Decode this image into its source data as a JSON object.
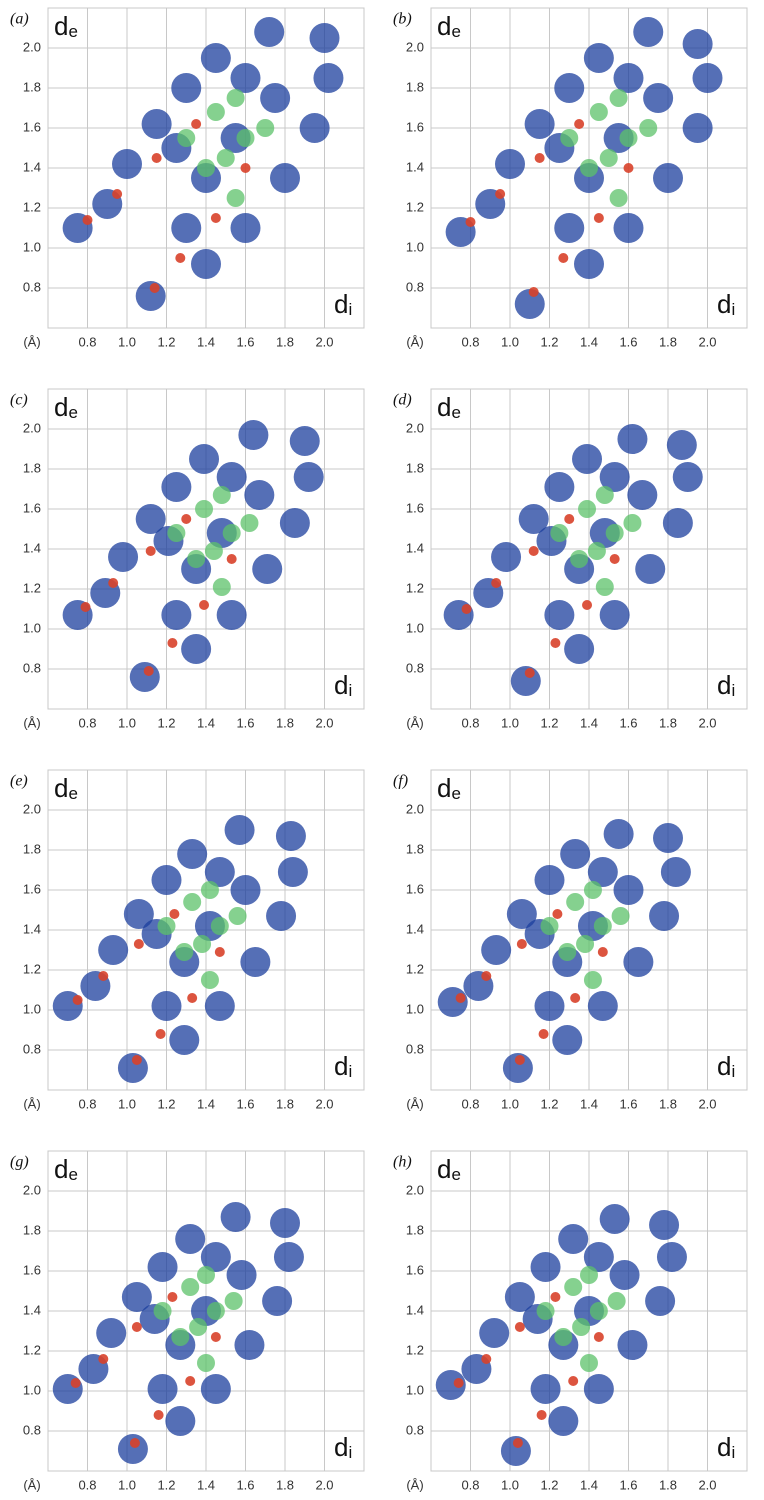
{
  "chart_data": [
    {
      "type": "scatter",
      "label": "(a)",
      "ylabel": {
        "main": "d",
        "sub": "e"
      },
      "xlabel": {
        "main": "d",
        "sub": "i"
      },
      "unit": "(Å)",
      "xlim": [
        0.6,
        2.2
      ],
      "ylim": [
        0.6,
        2.2
      ],
      "grid": true,
      "xticks": [
        0.8,
        {
          "value": 1,
          "label": "1.0"
        },
        1.2,
        1.4,
        1.6,
        1.8,
        {
          "value": 2,
          "label": "2.0"
        }
      ],
      "yticks": [
        0.8,
        {
          "value": 1,
          "label": "1.0"
        },
        1.2,
        1.4,
        1.6,
        1.8,
        {
          "value": 2,
          "label": "2.0"
        }
      ],
      "series": [
        {
          "color": "#1c3f9e",
          "x": [
            0.75,
            0.9,
            1.0,
            1.15,
            1.3,
            1.45,
            1.72,
            2.0,
            2.02,
            1.95,
            1.8,
            1.6,
            1.4,
            1.12,
            1.3,
            1.4,
            1.55,
            1.75,
            1.25,
            1.6
          ],
          "values": [
            1.1,
            1.22,
            1.42,
            1.62,
            1.8,
            1.95,
            2.08,
            2.05,
            1.85,
            1.6,
            1.35,
            1.1,
            0.92,
            0.76,
            1.1,
            1.35,
            1.55,
            1.75,
            1.5,
            1.85
          ]
        },
        {
          "color": "#5cc26a",
          "x": [
            1.3,
            1.45,
            1.55,
            1.6,
            1.5,
            1.7,
            1.4,
            1.55
          ],
          "values": [
            1.55,
            1.68,
            1.75,
            1.55,
            1.45,
            1.6,
            1.4,
            1.25
          ]
        },
        {
          "color": "#d8412a",
          "x": [
            0.8,
            0.95,
            1.15,
            1.35,
            1.14,
            1.27,
            1.45,
            1.6
          ],
          "values": [
            1.14,
            1.27,
            1.45,
            1.62,
            0.8,
            0.95,
            1.15,
            1.4
          ]
        }
      ]
    },
    {
      "type": "scatter",
      "label": "(b)",
      "ylabel": {
        "main": "d",
        "sub": "e"
      },
      "xlabel": {
        "main": "d",
        "sub": "i"
      },
      "unit": "(Å)",
      "xlim": [
        0.6,
        2.2
      ],
      "ylim": [
        0.6,
        2.2
      ],
      "grid": true,
      "xticks": [
        0.8,
        {
          "value": 1,
          "label": "1.0"
        },
        1.2,
        1.4,
        1.6,
        1.8,
        {
          "value": 2,
          "label": "2.0"
        }
      ],
      "yticks": [
        0.8,
        {
          "value": 1,
          "label": "1.0"
        },
        1.2,
        1.4,
        1.6,
        1.8,
        {
          "value": 2,
          "label": "2.0"
        }
      ],
      "series": [
        {
          "color": "#1c3f9e",
          "x": [
            0.75,
            0.9,
            1.0,
            1.15,
            1.3,
            1.45,
            1.7,
            1.95,
            2.0,
            1.95,
            1.8,
            1.6,
            1.4,
            1.1,
            1.3,
            1.4,
            1.55,
            1.75,
            1.25,
            1.6
          ],
          "values": [
            1.08,
            1.22,
            1.42,
            1.62,
            1.8,
            1.95,
            2.08,
            2.02,
            1.85,
            1.6,
            1.35,
            1.1,
            0.92,
            0.72,
            1.1,
            1.35,
            1.55,
            1.75,
            1.5,
            1.85
          ]
        },
        {
          "color": "#5cc26a",
          "x": [
            1.3,
            1.45,
            1.55,
            1.6,
            1.5,
            1.7,
            1.4,
            1.55
          ],
          "values": [
            1.55,
            1.68,
            1.75,
            1.55,
            1.45,
            1.6,
            1.4,
            1.25
          ]
        },
        {
          "color": "#d8412a",
          "x": [
            0.8,
            0.95,
            1.15,
            1.35,
            1.12,
            1.27,
            1.45,
            1.6
          ],
          "values": [
            1.13,
            1.27,
            1.45,
            1.62,
            0.78,
            0.95,
            1.15,
            1.4
          ]
        }
      ]
    },
    {
      "type": "scatter",
      "label": "(c)",
      "ylabel": {
        "main": "d",
        "sub": "e"
      },
      "xlabel": {
        "main": "d",
        "sub": "i"
      },
      "unit": "(Å)",
      "xlim": [
        0.6,
        2.2
      ],
      "ylim": [
        0.6,
        2.2
      ],
      "grid": true,
      "xticks": [
        0.8,
        {
          "value": 1,
          "label": "1.0"
        },
        1.2,
        1.4,
        1.6,
        1.8,
        {
          "value": 2,
          "label": "2.0"
        }
      ],
      "yticks": [
        0.8,
        {
          "value": 1,
          "label": "1.0"
        },
        1.2,
        1.4,
        1.6,
        1.8,
        {
          "value": 2,
          "label": "2.0"
        }
      ],
      "series": [
        {
          "color": "#1c3f9e",
          "x": [
            0.75,
            0.89,
            0.98,
            1.12,
            1.25,
            1.39,
            1.64,
            1.9,
            1.92,
            1.85,
            1.71,
            1.53,
            1.35,
            1.09,
            1.25,
            1.35,
            1.48,
            1.67,
            1.21,
            1.53
          ],
          "values": [
            1.07,
            1.18,
            1.36,
            1.55,
            1.71,
            1.85,
            1.97,
            1.94,
            1.76,
            1.53,
            1.3,
            1.07,
            0.9,
            0.76,
            1.07,
            1.3,
            1.48,
            1.67,
            1.44,
            1.76
          ]
        },
        {
          "color": "#5cc26a",
          "x": [
            1.25,
            1.39,
            1.48,
            1.53,
            1.44,
            1.62,
            1.35,
            1.48
          ],
          "values": [
            1.48,
            1.6,
            1.67,
            1.48,
            1.39,
            1.53,
            1.35,
            1.21
          ]
        },
        {
          "color": "#d8412a",
          "x": [
            0.79,
            0.93,
            1.12,
            1.3,
            1.11,
            1.23,
            1.39,
            1.53
          ],
          "values": [
            1.11,
            1.23,
            1.39,
            1.55,
            0.79,
            0.93,
            1.12,
            1.35
          ]
        }
      ]
    },
    {
      "type": "scatter",
      "label": "(d)",
      "ylabel": {
        "main": "d",
        "sub": "e"
      },
      "xlabel": {
        "main": "d",
        "sub": "i"
      },
      "unit": "(Å)",
      "xlim": [
        0.6,
        2.2
      ],
      "ylim": [
        0.6,
        2.2
      ],
      "grid": true,
      "xticks": [
        0.8,
        {
          "value": 1,
          "label": "1.0"
        },
        1.2,
        1.4,
        1.6,
        1.8,
        {
          "value": 2,
          "label": "2.0"
        }
      ],
      "yticks": [
        0.8,
        {
          "value": 1,
          "label": "1.0"
        },
        1.2,
        1.4,
        1.6,
        1.8,
        {
          "value": 2,
          "label": "2.0"
        }
      ],
      "series": [
        {
          "color": "#1c3f9e",
          "x": [
            0.74,
            0.89,
            0.98,
            1.12,
            1.25,
            1.39,
            1.62,
            1.87,
            1.9,
            1.85,
            1.71,
            1.53,
            1.35,
            1.08,
            1.25,
            1.35,
            1.48,
            1.67,
            1.21,
            1.53
          ],
          "values": [
            1.07,
            1.18,
            1.36,
            1.55,
            1.71,
            1.85,
            1.95,
            1.92,
            1.76,
            1.53,
            1.3,
            1.07,
            0.9,
            0.74,
            1.07,
            1.3,
            1.48,
            1.67,
            1.44,
            1.76
          ]
        },
        {
          "color": "#5cc26a",
          "x": [
            1.25,
            1.39,
            1.48,
            1.53,
            1.44,
            1.62,
            1.35,
            1.48
          ],
          "values": [
            1.48,
            1.6,
            1.67,
            1.48,
            1.39,
            1.53,
            1.35,
            1.21
          ]
        },
        {
          "color": "#d8412a",
          "x": [
            0.78,
            0.93,
            1.12,
            1.3,
            1.1,
            1.23,
            1.39,
            1.53
          ],
          "values": [
            1.1,
            1.23,
            1.39,
            1.55,
            0.78,
            0.93,
            1.12,
            1.35
          ]
        }
      ]
    },
    {
      "type": "scatter",
      "label": "(e)",
      "ylabel": {
        "main": "d",
        "sub": "e"
      },
      "xlabel": {
        "main": "d",
        "sub": "i"
      },
      "unit": "(Å)",
      "xlim": [
        0.6,
        2.2
      ],
      "ylim": [
        0.6,
        2.2
      ],
      "grid": true,
      "xticks": [
        0.8,
        {
          "value": 1,
          "label": "1.0"
        },
        1.2,
        1.4,
        1.6,
        1.8,
        {
          "value": 2,
          "label": "2.0"
        }
      ],
      "yticks": [
        0.8,
        {
          "value": 1,
          "label": "1.0"
        },
        1.2,
        1.4,
        1.6,
        1.8,
        {
          "value": 2,
          "label": "2.0"
        }
      ],
      "series": [
        {
          "color": "#1c3f9e",
          "x": [
            0.7,
            0.84,
            0.93,
            1.06,
            1.2,
            1.33,
            1.57,
            1.83,
            1.84,
            1.78,
            1.65,
            1.47,
            1.29,
            1.03,
            1.2,
            1.29,
            1.42,
            1.6,
            1.15,
            1.47
          ],
          "values": [
            1.02,
            1.12,
            1.3,
            1.48,
            1.65,
            1.78,
            1.9,
            1.87,
            1.69,
            1.47,
            1.24,
            1.02,
            0.85,
            0.71,
            1.02,
            1.24,
            1.42,
            1.6,
            1.38,
            1.69
          ]
        },
        {
          "color": "#5cc26a",
          "x": [
            1.2,
            1.33,
            1.42,
            1.47,
            1.38,
            1.56,
            1.29,
            1.42
          ],
          "values": [
            1.42,
            1.54,
            1.6,
            1.42,
            1.33,
            1.47,
            1.29,
            1.15
          ]
        },
        {
          "color": "#d8412a",
          "x": [
            0.75,
            0.88,
            1.06,
            1.24,
            1.05,
            1.17,
            1.33,
            1.47
          ],
          "values": [
            1.05,
            1.17,
            1.33,
            1.48,
            0.75,
            0.88,
            1.06,
            1.29
          ]
        }
      ]
    },
    {
      "type": "scatter",
      "label": "(f)",
      "ylabel": {
        "main": "d",
        "sub": "e"
      },
      "xlabel": {
        "main": "d",
        "sub": "i"
      },
      "unit": "(Å)",
      "xlim": [
        0.6,
        2.2
      ],
      "ylim": [
        0.6,
        2.2
      ],
      "grid": true,
      "xticks": [
        0.8,
        {
          "value": 1,
          "label": "1.0"
        },
        1.2,
        1.4,
        1.6,
        1.8,
        {
          "value": 2,
          "label": "2.0"
        }
      ],
      "yticks": [
        0.8,
        {
          "value": 1,
          "label": "1.0"
        },
        1.2,
        1.4,
        1.6,
        1.8,
        {
          "value": 2,
          "label": "2.0"
        }
      ],
      "series": [
        {
          "color": "#1c3f9e",
          "x": [
            0.71,
            0.84,
            0.93,
            1.06,
            1.2,
            1.33,
            1.55,
            1.8,
            1.84,
            1.78,
            1.65,
            1.47,
            1.29,
            1.04,
            1.2,
            1.29,
            1.42,
            1.6,
            1.15,
            1.47
          ],
          "values": [
            1.04,
            1.12,
            1.3,
            1.48,
            1.65,
            1.78,
            1.88,
            1.86,
            1.69,
            1.47,
            1.24,
            1.02,
            0.85,
            0.71,
            1.02,
            1.24,
            1.42,
            1.6,
            1.38,
            1.69
          ]
        },
        {
          "color": "#5cc26a",
          "x": [
            1.2,
            1.33,
            1.42,
            1.47,
            1.38,
            1.56,
            1.29,
            1.42
          ],
          "values": [
            1.42,
            1.54,
            1.6,
            1.42,
            1.33,
            1.47,
            1.29,
            1.15
          ]
        },
        {
          "color": "#d8412a",
          "x": [
            0.75,
            0.88,
            1.06,
            1.24,
            1.05,
            1.17,
            1.33,
            1.47
          ],
          "values": [
            1.06,
            1.17,
            1.33,
            1.48,
            0.75,
            0.88,
            1.06,
            1.29
          ]
        }
      ]
    },
    {
      "type": "scatter",
      "label": "(g)",
      "ylabel": {
        "main": "d",
        "sub": "e"
      },
      "xlabel": {
        "main": "d",
        "sub": "i"
      },
      "unit": "(Å)",
      "xlim": [
        0.6,
        2.2
      ],
      "ylim": [
        0.6,
        2.2
      ],
      "grid": true,
      "xticks": [
        0.8,
        {
          "value": 1,
          "label": "1.0"
        },
        1.2,
        1.4,
        1.6,
        1.8,
        {
          "value": 2,
          "label": "2.0"
        }
      ],
      "yticks": [
        0.8,
        {
          "value": 1,
          "label": "1.0"
        },
        1.2,
        1.4,
        1.6,
        1.8,
        {
          "value": 2,
          "label": "2.0"
        }
      ],
      "series": [
        {
          "color": "#1c3f9e",
          "x": [
            0.7,
            0.83,
            0.92,
            1.05,
            1.18,
            1.32,
            1.55,
            1.8,
            1.82,
            1.76,
            1.62,
            1.45,
            1.27,
            1.03,
            1.18,
            1.27,
            1.4,
            1.58,
            1.14,
            1.45
          ],
          "values": [
            1.01,
            1.11,
            1.29,
            1.47,
            1.62,
            1.76,
            1.87,
            1.84,
            1.67,
            1.45,
            1.23,
            1.01,
            0.85,
            0.71,
            1.01,
            1.23,
            1.4,
            1.58,
            1.36,
            1.67
          ]
        },
        {
          "color": "#5cc26a",
          "x": [
            1.18,
            1.32,
            1.4,
            1.45,
            1.36,
            1.54,
            1.27,
            1.4
          ],
          "values": [
            1.4,
            1.52,
            1.58,
            1.4,
            1.32,
            1.45,
            1.27,
            1.14
          ]
        },
        {
          "color": "#d8412a",
          "x": [
            0.74,
            0.88,
            1.05,
            1.23,
            1.04,
            1.16,
            1.32,
            1.45
          ],
          "values": [
            1.04,
            1.16,
            1.32,
            1.47,
            0.74,
            0.88,
            1.05,
            1.27
          ]
        }
      ]
    },
    {
      "type": "scatter",
      "label": "(h)",
      "ylabel": {
        "main": "d",
        "sub": "e"
      },
      "xlabel": {
        "main": "d",
        "sub": "i"
      },
      "unit": "(Å)",
      "xlim": [
        0.6,
        2.2
      ],
      "ylim": [
        0.6,
        2.2
      ],
      "grid": true,
      "xticks": [
        0.8,
        {
          "value": 1,
          "label": "1.0"
        },
        1.2,
        1.4,
        1.6,
        1.8,
        {
          "value": 2,
          "label": "2.0"
        }
      ],
      "yticks": [
        0.8,
        {
          "value": 1,
          "label": "1.0"
        },
        1.2,
        1.4,
        1.6,
        1.8,
        {
          "value": 2,
          "label": "2.0"
        }
      ],
      "series": [
        {
          "color": "#1c3f9e",
          "x": [
            0.7,
            0.83,
            0.92,
            1.05,
            1.18,
            1.32,
            1.53,
            1.78,
            1.82,
            1.76,
            1.62,
            1.45,
            1.27,
            1.03,
            1.18,
            1.27,
            1.4,
            1.58,
            1.14,
            1.45
          ],
          "values": [
            1.03,
            1.11,
            1.29,
            1.47,
            1.62,
            1.76,
            1.86,
            1.83,
            1.67,
            1.45,
            1.23,
            1.01,
            0.85,
            0.7,
            1.01,
            1.23,
            1.4,
            1.58,
            1.36,
            1.67
          ]
        },
        {
          "color": "#5cc26a",
          "x": [
            1.18,
            1.32,
            1.4,
            1.45,
            1.36,
            1.54,
            1.27,
            1.4
          ],
          "values": [
            1.4,
            1.52,
            1.58,
            1.4,
            1.32,
            1.45,
            1.27,
            1.14
          ]
        },
        {
          "color": "#d8412a",
          "x": [
            0.74,
            0.88,
            1.05,
            1.23,
            1.04,
            1.16,
            1.32,
            1.45
          ],
          "values": [
            1.04,
            1.16,
            1.32,
            1.47,
            0.74,
            0.88,
            1.05,
            1.27
          ]
        }
      ]
    }
  ]
}
